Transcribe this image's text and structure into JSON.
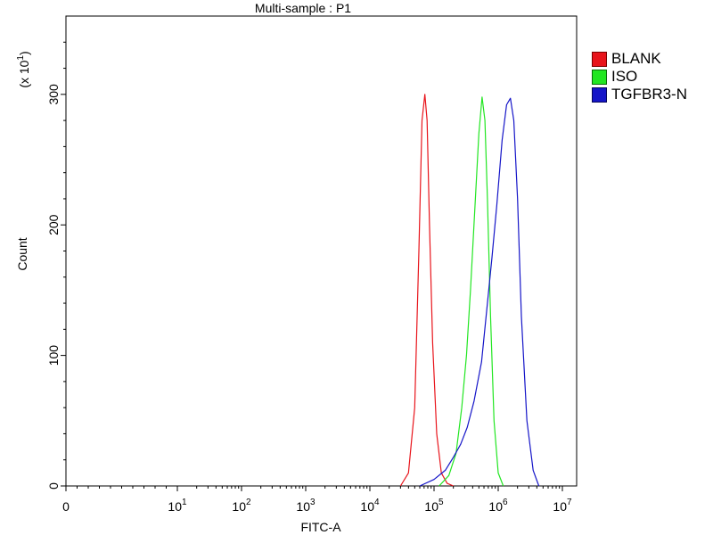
{
  "chart_data": {
    "type": "line",
    "title": "Multi-sample : P1",
    "xlabel": "FITC-A",
    "ylabel": "Count",
    "y_multiplier_label": "(x 10",
    "y_multiplier_exp": "1",
    "x_scale": "log (with 0)",
    "xlim": [
      0,
      10000000
    ],
    "ylim": [
      0,
      360
    ],
    "y_ticks": [
      {
        "value": 0,
        "label": "0"
      },
      {
        "value": 100,
        "label": "100"
      },
      {
        "value": 200,
        "label": "200"
      },
      {
        "value": 300,
        "label": "300"
      }
    ],
    "x_ticks": [
      {
        "value": 0,
        "base": "0",
        "exp": ""
      },
      {
        "value": 10,
        "base": "10",
        "exp": "1"
      },
      {
        "value": 100,
        "base": "10",
        "exp": "2"
      },
      {
        "value": 1000,
        "base": "10",
        "exp": "3"
      },
      {
        "value": 10000,
        "base": "10",
        "exp": "4"
      },
      {
        "value": 100000,
        "base": "10",
        "exp": "5"
      },
      {
        "value": 1000000,
        "base": "10",
        "exp": "6"
      },
      {
        "value": 10000000,
        "base": "10",
        "exp": "7"
      }
    ],
    "legend_position": "right",
    "series": [
      {
        "name": "BLANK",
        "color": "#e8141b",
        "x": [
          30000,
          40000,
          50000,
          58000,
          65000,
          72000,
          78000,
          85000,
          95000,
          110000,
          130000,
          160000,
          200000
        ],
        "y": [
          0,
          10,
          60,
          180,
          280,
          300,
          280,
          200,
          110,
          40,
          10,
          2,
          0
        ]
      },
      {
        "name": "ISO",
        "color": "#22e622",
        "x": [
          120000,
          170000,
          220000,
          270000,
          320000,
          370000,
          430000,
          500000,
          560000,
          620000,
          680000,
          760000,
          860000,
          1000000,
          1200000
        ],
        "y": [
          0,
          8,
          25,
          60,
          100,
          150,
          210,
          270,
          298,
          280,
          220,
          130,
          50,
          10,
          0
        ]
      },
      {
        "name": "TGFBR3-N",
        "color": "#1515c8",
        "x": [
          60000,
          100000,
          150000,
          200000,
          260000,
          330000,
          420000,
          550000,
          680000,
          800000,
          950000,
          1150000,
          1350000,
          1550000,
          1750000,
          2000000,
          2300000,
          2800000,
          3500000,
          4300000
        ],
        "y": [
          0,
          5,
          12,
          22,
          32,
          45,
          65,
          95,
          140,
          175,
          215,
          265,
          292,
          297,
          280,
          220,
          130,
          50,
          12,
          0
        ]
      }
    ]
  }
}
